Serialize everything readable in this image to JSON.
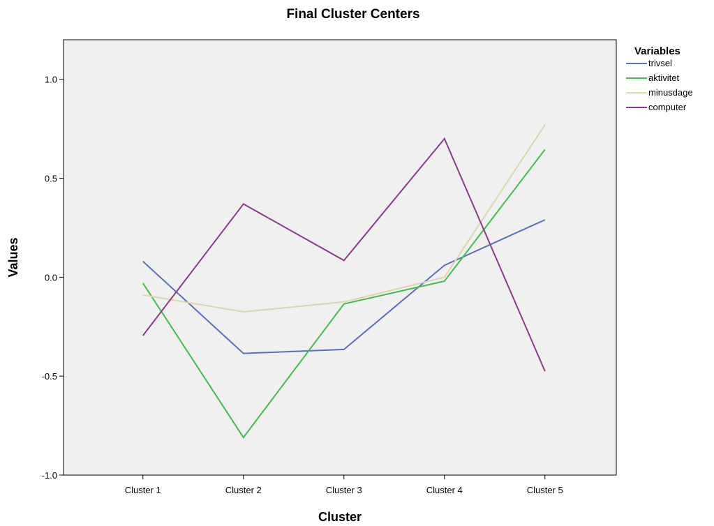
{
  "chart_data": {
    "type": "line",
    "title": "Final Cluster Centers",
    "xlabel": "Cluster",
    "ylabel": "Values",
    "categories": [
      "Cluster 1",
      "Cluster 2",
      "Cluster 3",
      "Cluster 4",
      "Cluster 5"
    ],
    "ylim": [
      -1.0,
      1.2
    ],
    "yticks": [
      -1.0,
      -0.5,
      0.0,
      0.5,
      1.0
    ],
    "ytick_labels": [
      "-1.0",
      "-0.5",
      "0.0",
      "0.5",
      "1.0"
    ],
    "grid": false,
    "legend_title": "Variables",
    "legend_position": "right",
    "plot_background": "#f0f0f0",
    "series": [
      {
        "name": "trivsel",
        "color": "#5b6fbe",
        "values": [
          0.08,
          -0.385,
          -0.365,
          0.06,
          0.29
        ]
      },
      {
        "name": "aktivitet",
        "color": "#3fbf4a",
        "values": [
          -0.03,
          -0.81,
          -0.135,
          -0.02,
          0.645
        ]
      },
      {
        "name": "minusdage",
        "color": "#ddd4b0",
        "values": [
          -0.09,
          -0.175,
          -0.125,
          0.0,
          0.77
        ]
      },
      {
        "name": "computer",
        "color": "#8c3a8c",
        "values": [
          -0.295,
          0.37,
          0.085,
          0.7,
          -0.475
        ]
      }
    ]
  }
}
